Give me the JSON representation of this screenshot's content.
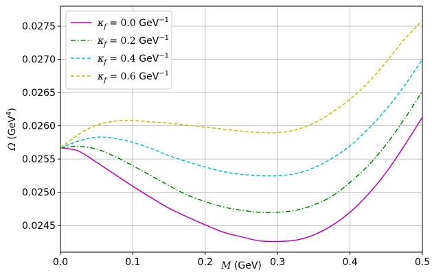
{
  "chart_data": {
    "type": "line",
    "xlabel": {
      "symbol": "M",
      "unit": " (GeV)"
    },
    "ylabel": {
      "symbol": "Ω",
      "unit_prefix": " (GeV",
      "unit_exp": "4",
      "unit_suffix": ")"
    },
    "xlim": [
      0.0,
      0.5
    ],
    "ylim": [
      0.0241,
      0.0278
    ],
    "grid": true,
    "legend_position": "top-left",
    "x_ticks": [
      "0.0",
      "0.1",
      "0.2",
      "0.3",
      "0.4",
      "0.5"
    ],
    "y_ticks": [
      "0.0245",
      "0.0250",
      "0.0255",
      "0.0260",
      "0.0265",
      "0.0270",
      "0.0275"
    ],
    "x_tick_values": [
      0.0,
      0.1,
      0.2,
      0.3,
      0.4,
      0.5
    ],
    "y_tick_values": [
      0.0245,
      0.025,
      0.0255,
      0.026,
      0.0265,
      0.027,
      0.0275
    ],
    "x": [
      0.0,
      0.025,
      0.05,
      0.075,
      0.1,
      0.125,
      0.15,
      0.175,
      0.2,
      0.225,
      0.25,
      0.275,
      0.3,
      0.325,
      0.35,
      0.375,
      0.4,
      0.425,
      0.45,
      0.475,
      0.5
    ],
    "series": [
      {
        "symbol": "κ",
        "sub": "f",
        "eq": " = 0.0",
        "unit": " GeV",
        "unit_exp": "−1",
        "color": "#bf00bf",
        "dash": "solid",
        "values": [
          0.02567,
          0.02562,
          0.02545,
          0.02527,
          0.02509,
          0.02492,
          0.02476,
          0.02463,
          0.02451,
          0.0244,
          0.02433,
          0.02427,
          0.02426,
          0.02428,
          0.02436,
          0.0245,
          0.0247,
          0.02497,
          0.0253,
          0.0257,
          0.02613
        ]
      },
      {
        "symbol": "κ",
        "sub": "f",
        "eq": " = 0.2",
        "unit": " GeV",
        "unit_exp": "−1",
        "color": "#008000",
        "dash": "dashdot",
        "values": [
          0.02567,
          0.02569,
          0.02565,
          0.02554,
          0.0254,
          0.02525,
          0.0251,
          0.02496,
          0.02486,
          0.02478,
          0.02473,
          0.0247,
          0.0247,
          0.02473,
          0.02481,
          0.02494,
          0.02515,
          0.0254,
          0.02572,
          0.0261,
          0.02652
        ]
      },
      {
        "symbol": "κ",
        "sub": "f",
        "eq": " = 0.4",
        "unit": " GeV",
        "unit_exp": "−1",
        "color": "#00bfbf",
        "dash": "dashed",
        "values": [
          0.02567,
          0.02577,
          0.02583,
          0.02581,
          0.02575,
          0.02566,
          0.02555,
          0.02546,
          0.02538,
          0.02531,
          0.02527,
          0.02525,
          0.02525,
          0.02528,
          0.02537,
          0.02551,
          0.0257,
          0.02595,
          0.02625,
          0.0266,
          0.027
        ]
      },
      {
        "symbol": "κ",
        "sub": "f",
        "eq": " = 0.6",
        "unit": " GeV",
        "unit_exp": "−1",
        "color": "#bfbf00",
        "dash": "dashed",
        "values": [
          0.02567,
          0.02587,
          0.02601,
          0.02607,
          0.02608,
          0.02606,
          0.02604,
          0.02601,
          0.02598,
          0.02595,
          0.02592,
          0.0259,
          0.0259,
          0.02594,
          0.02604,
          0.0262,
          0.0264,
          0.02665,
          0.02696,
          0.0273,
          0.02758
        ]
      }
    ]
  }
}
